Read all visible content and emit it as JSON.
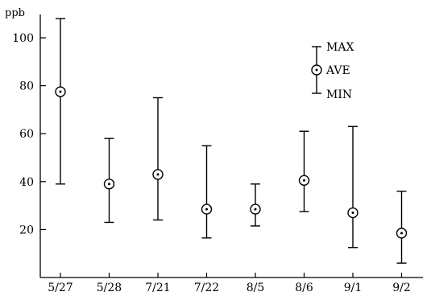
{
  "chart_data": {
    "type": "errorbar",
    "ylabel": "ppb",
    "categories": [
      "5/27",
      "5/28",
      "7/21",
      "7/22",
      "8/5",
      "8/6",
      "9/1",
      "9/2"
    ],
    "max": [
      108,
      58,
      75,
      55,
      39,
      61,
      63,
      36
    ],
    "ave": [
      77.5,
      39,
      43,
      28.5,
      28.5,
      40.5,
      27,
      18.5
    ],
    "min": [
      39,
      23,
      24,
      16.5,
      21.5,
      27.5,
      12.5,
      6
    ],
    "yticks": [
      20,
      40,
      60,
      80,
      100
    ],
    "ylim": [
      0,
      112
    ],
    "legend": {
      "max_label": "MAX",
      "ave_label": "AVE",
      "min_label": "MIN",
      "position": "top-right"
    },
    "grid": false
  }
}
